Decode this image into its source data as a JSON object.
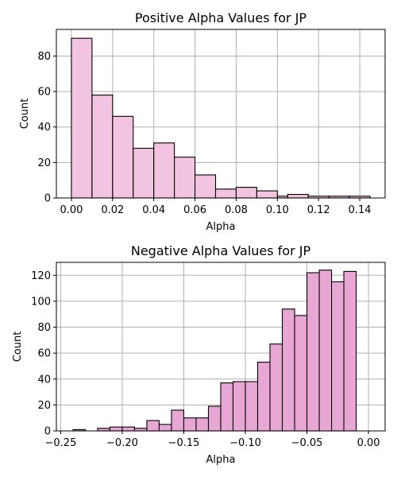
{
  "chart_data": [
    {
      "type": "histogram",
      "title": "Positive Alpha Values for JP",
      "xlabel": "Alpha",
      "ylabel": "Count",
      "xlim": [
        -0.0073,
        0.1523
      ],
      "ylim": [
        0,
        95
      ],
      "grid": true,
      "bar_color": "#f2c4e0",
      "edge_color": "#000000",
      "xticks": [
        0.0,
        0.02,
        0.04,
        0.06,
        0.08,
        0.1,
        0.12,
        0.14
      ],
      "xtick_labels": [
        "0.00",
        "0.02",
        "0.04",
        "0.06",
        "0.08",
        "0.10",
        "0.12",
        "0.14"
      ],
      "yticks": [
        0,
        20,
        40,
        60,
        80
      ],
      "ytick_labels": [
        "0",
        "20",
        "40",
        "60",
        "80"
      ],
      "bins": [
        {
          "x0": 0.0,
          "x1": 0.01,
          "count": 90
        },
        {
          "x0": 0.01,
          "x1": 0.02,
          "count": 58
        },
        {
          "x0": 0.02,
          "x1": 0.03,
          "count": 46
        },
        {
          "x0": 0.03,
          "x1": 0.04,
          "count": 28
        },
        {
          "x0": 0.04,
          "x1": 0.05,
          "count": 31
        },
        {
          "x0": 0.05,
          "x1": 0.06,
          "count": 23
        },
        {
          "x0": 0.06,
          "x1": 0.07,
          "count": 13
        },
        {
          "x0": 0.07,
          "x1": 0.08,
          "count": 5
        },
        {
          "x0": 0.08,
          "x1": 0.09,
          "count": 6
        },
        {
          "x0": 0.09,
          "x1": 0.1,
          "count": 4
        },
        {
          "x0": 0.1,
          "x1": 0.105,
          "count": 1
        },
        {
          "x0": 0.105,
          "x1": 0.115,
          "count": 2
        },
        {
          "x0": 0.115,
          "x1": 0.125,
          "count": 1
        },
        {
          "x0": 0.125,
          "x1": 0.135,
          "count": 1
        },
        {
          "x0": 0.135,
          "x1": 0.145,
          "count": 1
        }
      ]
    },
    {
      "type": "histogram",
      "title": "Negative Alpha Values for JP",
      "xlabel": "Alpha",
      "ylabel": "Count",
      "xlim": [
        -0.2535,
        0.0135
      ],
      "ylim": [
        0,
        130
      ],
      "grid": true,
      "bar_color": "#e8a6d4",
      "edge_color": "#000000",
      "xticks": [
        -0.25,
        -0.2,
        -0.15,
        -0.1,
        -0.05,
        0.0
      ],
      "xtick_labels": [
        "−0.25",
        "−0.20",
        "−0.15",
        "−0.10",
        "−0.05",
        "0.00"
      ],
      "yticks": [
        0,
        20,
        40,
        60,
        80,
        100,
        120
      ],
      "ytick_labels": [
        "0",
        "20",
        "40",
        "60",
        "80",
        "100",
        "120"
      ],
      "bins": [
        {
          "x0": -0.24,
          "x1": -0.23,
          "count": 1
        },
        {
          "x0": -0.23,
          "x1": -0.22,
          "count": 0
        },
        {
          "x0": -0.22,
          "x1": -0.21,
          "count": 2
        },
        {
          "x0": -0.21,
          "x1": -0.2,
          "count": 3
        },
        {
          "x0": -0.2,
          "x1": -0.19,
          "count": 3
        },
        {
          "x0": -0.19,
          "x1": -0.18,
          "count": 2
        },
        {
          "x0": -0.18,
          "x1": -0.17,
          "count": 8
        },
        {
          "x0": -0.17,
          "x1": -0.16,
          "count": 5
        },
        {
          "x0": -0.16,
          "x1": -0.15,
          "count": 16
        },
        {
          "x0": -0.15,
          "x1": -0.14,
          "count": 10
        },
        {
          "x0": -0.14,
          "x1": -0.13,
          "count": 10
        },
        {
          "x0": -0.13,
          "x1": -0.12,
          "count": 19
        },
        {
          "x0": -0.12,
          "x1": -0.11,
          "count": 37
        },
        {
          "x0": -0.11,
          "x1": -0.1,
          "count": 38
        },
        {
          "x0": -0.1,
          "x1": -0.09,
          "count": 38
        },
        {
          "x0": -0.09,
          "x1": -0.08,
          "count": 53
        },
        {
          "x0": -0.08,
          "x1": -0.07,
          "count": 67
        },
        {
          "x0": -0.07,
          "x1": -0.06,
          "count": 94
        },
        {
          "x0": -0.06,
          "x1": -0.05,
          "count": 89
        },
        {
          "x0": -0.05,
          "x1": -0.04,
          "count": 122
        },
        {
          "x0": -0.04,
          "x1": -0.03,
          "count": 124
        },
        {
          "x0": -0.03,
          "x1": -0.02,
          "count": 115
        },
        {
          "x0": -0.02,
          "x1": -0.01,
          "count": 123
        }
      ]
    }
  ]
}
